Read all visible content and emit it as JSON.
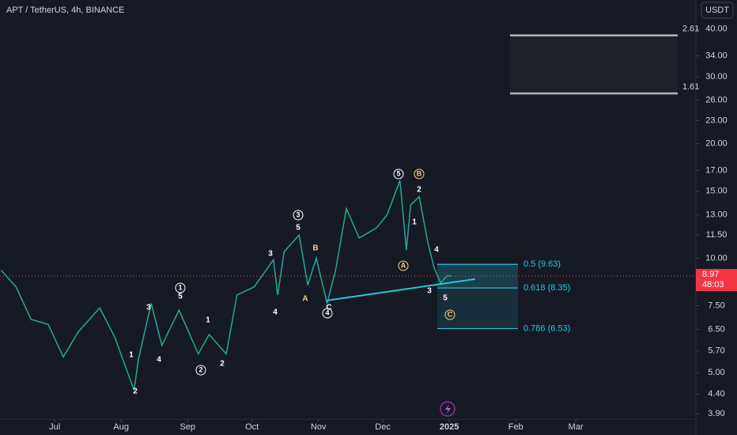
{
  "chart_data": {
    "type": "line",
    "title": "APT / TetherUS, 4h, BINANCE",
    "currency_button": "USDT",
    "color": "#26a69a",
    "log_scale": true,
    "x": [
      -25,
      -18,
      -11,
      -3,
      4,
      11,
      21,
      28,
      37,
      39,
      45,
      50,
      58,
      67,
      72,
      80,
      85,
      93,
      102,
      104,
      107,
      114,
      118,
      122,
      127,
      131,
      136,
      142,
      150,
      155,
      161,
      164,
      166,
      170,
      174,
      177,
      180,
      183,
      185
    ],
    "values": [
      9.3,
      8.4,
      6.9,
      6.7,
      5.5,
      6.4,
      7.4,
      6.2,
      4.5,
      5.4,
      7.6,
      5.9,
      7.3,
      5.6,
      6.3,
      5.6,
      8.0,
      8.4,
      9.9,
      8.0,
      10.4,
      11.5,
      8.5,
      10.0,
      7.6,
      9.3,
      13.5,
      11.3,
      12.0,
      13.0,
      16.0,
      10.5,
      13.8,
      14.5,
      11.0,
      9.4,
      8.6,
      9.0,
      8.97
    ],
    "xlim": [
      -25.5,
      299
    ],
    "xticks": [
      {
        "value": 0,
        "label": "Jul"
      },
      {
        "value": 31,
        "label": "Aug"
      },
      {
        "value": 62,
        "label": "Sep"
      },
      {
        "value": 92,
        "label": "Oct"
      },
      {
        "value": 123,
        "label": "Nov"
      },
      {
        "value": 153,
        "label": "Dec"
      },
      {
        "value": 184,
        "label": "2025"
      },
      {
        "value": 215,
        "label": "Feb"
      },
      {
        "value": 243,
        "label": "Mar"
      }
    ],
    "ylim": [
      3.81,
      47.7
    ],
    "yticks": [
      {
        "value": 40,
        "label": "40.00"
      },
      {
        "value": 34,
        "label": "34.00"
      },
      {
        "value": 30,
        "label": "30.00"
      },
      {
        "value": 26,
        "label": "26.00"
      },
      {
        "value": 23,
        "label": "23.00"
      },
      {
        "value": 20,
        "label": "20.00"
      },
      {
        "value": 17,
        "label": "17.00"
      },
      {
        "value": 15,
        "label": "15.00"
      },
      {
        "value": 13,
        "label": "13.00"
      },
      {
        "value": 11.5,
        "label": "11.50"
      },
      {
        "value": 10,
        "label": "10.00"
      },
      {
        "value": 7.5,
        "label": "7.50"
      },
      {
        "value": 6.5,
        "label": "6.50"
      },
      {
        "value": 5.7,
        "label": "5.70"
      },
      {
        "value": 5,
        "label": "5.00"
      },
      {
        "value": 4.4,
        "label": "4.40"
      },
      {
        "value": 3.9,
        "label": "3.90"
      }
    ],
    "last_price": 8.97,
    "last_price_label": "8.97",
    "countdown": "48:03",
    "fib_levels": [
      {
        "value": 9.63,
        "label": "0.5 (9.63)"
      },
      {
        "value": 8.35,
        "label": "0.618 (8.35)"
      },
      {
        "value": 6.53,
        "label": "0.786 (6.53)"
      }
    ],
    "target_box": [
      {
        "value": 38.5,
        "label": "2.61"
      },
      {
        "value": 27.1,
        "label": "1.61"
      }
    ],
    "trendline": {
      "x": [
        127,
        196
      ],
      "values": [
        7.74,
        8.81
      ]
    },
    "annotations": [
      "1",
      "5",
      "3",
      "4",
      "1",
      "2",
      "2",
      "1",
      "2",
      "3",
      "4",
      "3",
      "5",
      "A",
      "B",
      "C",
      "4",
      "5",
      "B",
      "2",
      "1",
      "A",
      "4",
      "3",
      "5",
      "C"
    ]
  }
}
